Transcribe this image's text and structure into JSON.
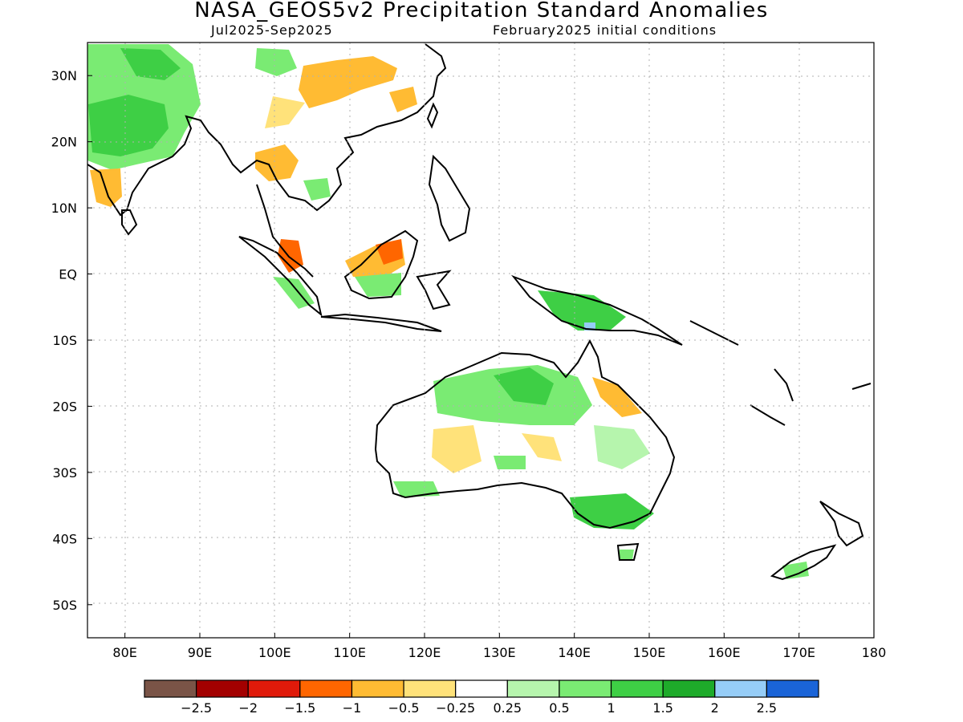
{
  "header": {
    "title": "NASA_GEOS5v2 Precipitation Standard Anomalies",
    "period": "Jul2025-Sep2025",
    "init": "February2025 initial conditions"
  },
  "map": {
    "lon_range": [
      75,
      180
    ],
    "lat_range": [
      -55,
      35
    ],
    "lon_ticks": [
      {
        "value": 80,
        "label": "80E"
      },
      {
        "value": 90,
        "label": "90E"
      },
      {
        "value": 100,
        "label": "100E"
      },
      {
        "value": 110,
        "label": "110E"
      },
      {
        "value": 120,
        "label": "120E"
      },
      {
        "value": 130,
        "label": "130E"
      },
      {
        "value": 140,
        "label": "140E"
      },
      {
        "value": 150,
        "label": "150E"
      },
      {
        "value": 160,
        "label": "160E"
      },
      {
        "value": 170,
        "label": "170E"
      },
      {
        "value": 180,
        "label": "180"
      }
    ],
    "lat_ticks": [
      {
        "value": 30,
        "label": "30N"
      },
      {
        "value": 20,
        "label": "20N"
      },
      {
        "value": 10,
        "label": "10N"
      },
      {
        "value": 0,
        "label": "EQ"
      },
      {
        "value": -10,
        "label": "10S"
      },
      {
        "value": -20,
        "label": "20S"
      },
      {
        "value": -30,
        "label": "30S"
      },
      {
        "value": -40,
        "label": "40S"
      },
      {
        "value": -50,
        "label": "50S"
      }
    ],
    "grid": "dotted"
  },
  "colorbar": {
    "colors": [
      "#7a5447",
      "#a30000",
      "#e01a0a",
      "#ff6600",
      "#ffbb33",
      "#ffe27a",
      "#ffffff",
      "#b6f5ad",
      "#7aeb73",
      "#3ecf45",
      "#1eab2a",
      "#96cdf7",
      "#1a64d8"
    ],
    "labels": [
      "-2.5",
      "-2",
      "-1.5",
      "-1",
      "-0.5",
      "-0.25",
      "0.25",
      "0.5",
      "1",
      "1.5",
      "2",
      "2.5"
    ]
  }
}
